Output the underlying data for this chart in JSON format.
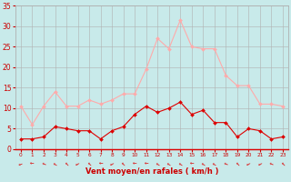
{
  "hours": [
    0,
    1,
    2,
    3,
    4,
    5,
    6,
    7,
    8,
    9,
    10,
    11,
    12,
    13,
    14,
    15,
    16,
    17,
    18,
    19,
    20,
    21,
    22,
    23
  ],
  "wind_avg": [
    2.5,
    2.5,
    3.0,
    5.5,
    5.0,
    4.5,
    4.5,
    2.5,
    4.5,
    5.5,
    8.5,
    10.5,
    9.0,
    10.0,
    11.5,
    8.5,
    9.5,
    6.5,
    6.5,
    3.0,
    5.0,
    4.5,
    2.5,
    3.0
  ],
  "wind_gust": [
    10.5,
    6.0,
    10.5,
    14.0,
    10.5,
    10.5,
    12.0,
    11.0,
    12.0,
    13.5,
    13.5,
    19.5,
    27.0,
    24.5,
    31.5,
    25.0,
    24.5,
    24.5,
    18.0,
    15.5,
    15.5,
    11.0,
    11.0,
    10.5
  ],
  "avg_color": "#dd0000",
  "gust_color": "#ffaaaa",
  "bg_color": "#c8eaea",
  "grid_color": "#b0b0b0",
  "xlabel": "Vent moyen/en rafales ( km/h )",
  "xlabel_color": "#cc0000",
  "tick_color": "#cc0000",
  "ylim": [
    0,
    35
  ],
  "yticks": [
    0,
    5,
    10,
    15,
    20,
    25,
    30,
    35
  ]
}
